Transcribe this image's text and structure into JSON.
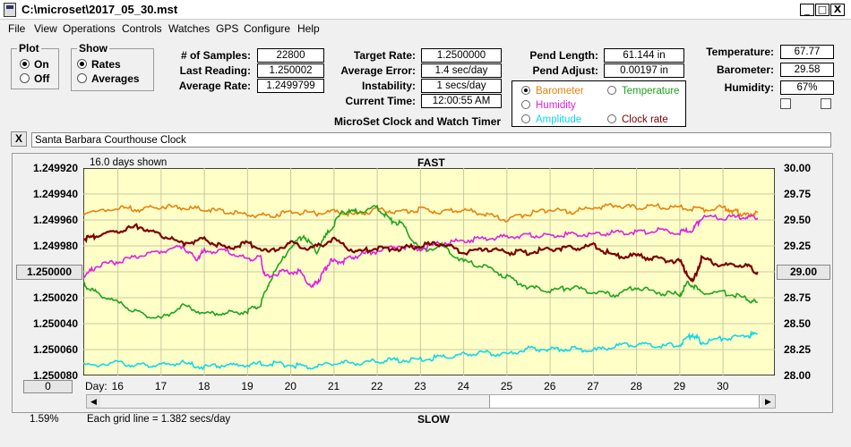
{
  "window": {
    "title": "C:\\microset\\2017_05_30.mst",
    "minimize": "_",
    "maximize": "□",
    "close": "X"
  },
  "menu": [
    "File",
    "View",
    "Operations",
    "Controls",
    "Watches",
    "GPS",
    "Configure",
    "Help"
  ],
  "plot_group": {
    "legend": "Plot",
    "options": [
      "On",
      "Off"
    ],
    "selected": 0
  },
  "show_group": {
    "legend": "Show",
    "options": [
      "Rates",
      "Averages"
    ],
    "selected": 0
  },
  "stats": {
    "samples_label": "# of Samples:",
    "samples": "22800",
    "last_label": "Last Reading:",
    "last": "1.250002",
    "avg_label": "Average Rate:",
    "avg": "1.2499799",
    "target_label": "Target Rate:",
    "target": "1.2500000",
    "err_label": "Average Error:",
    "err": "1.4 sec/day",
    "instab_label": "Instability:",
    "instab": "1 secs/day",
    "time_label": "Current Time:",
    "time": "12:00:55 AM",
    "pendlen_label": "Pend Length:",
    "pendlen": "61.144 in",
    "pendadj_label": "Pend Adjust:",
    "pendadj": "0.00197 in",
    "temp_label": "Temperature:",
    "temp": "67.77",
    "baro_label": "Barometer:",
    "baro": "29.58",
    "hum_label": "Humidity:",
    "hum": "67%"
  },
  "legend": [
    {
      "label": "Barometer",
      "color": "#e8820c",
      "selected": true
    },
    {
      "label": "Temperature",
      "color": "#1ea51e",
      "selected": false
    },
    {
      "label": "Humidity",
      "color": "#e020e0",
      "selected": false
    },
    {
      "label": "Amplitude",
      "color": "#10d8e8",
      "selected": false
    },
    {
      "label": "Clock rate",
      "color": "#7a0000",
      "selected": false
    }
  ],
  "clock_title": "MicroSet Clock and Watch Timer",
  "clock_name": "Santa Barbara Courthouse Clock",
  "x_button": "X",
  "chart_data": {
    "type": "line",
    "days_shown": "16.0 days shown",
    "top_label": "FAST",
    "bottom_label": "SLOW",
    "grid_note": "Each grid line = 1.382 secs/day",
    "percent": "1.59%",
    "day_label": "Day:",
    "left_button": "1.250000",
    "right_button": "29.00",
    "zero_button": "0",
    "y_left_ticks": [
      "1.249920",
      "1.249940",
      "1.249960",
      "1.249980",
      "1.250000",
      "1.250020",
      "1.250040",
      "1.250060",
      "1.250080"
    ],
    "y_left_range": [
      1.24992,
      1.25008
    ],
    "y_right_ticks": [
      "30.00",
      "29.75",
      "29.50",
      "29.25",
      "29.00",
      "28.75",
      "28.50",
      "28.25",
      "28.00"
    ],
    "y_right_range": [
      28.0,
      30.0
    ],
    "x_ticks": [
      16,
      17,
      18,
      19,
      20,
      21,
      22,
      23,
      24,
      25,
      26,
      27,
      28,
      29,
      30
    ],
    "x_range": [
      15.2,
      31.2
    ],
    "series": [
      {
        "name": "Barometer",
        "color": "#e8820c",
        "axis": "right",
        "x": [
          15.2,
          16,
          16.5,
          17,
          17.5,
          18,
          18.5,
          19,
          19.5,
          20,
          20.5,
          21,
          21.5,
          22,
          22.5,
          23,
          23.5,
          24,
          24.5,
          25,
          25.5,
          26,
          26.5,
          27,
          27.5,
          28,
          28.5,
          29,
          29.5,
          30,
          30.3,
          30.5,
          30.8
        ],
        "y": [
          29.55,
          29.62,
          29.6,
          29.63,
          29.62,
          29.6,
          29.58,
          29.55,
          29.54,
          29.58,
          29.56,
          29.58,
          29.55,
          29.6,
          29.58,
          29.6,
          29.58,
          29.6,
          29.55,
          29.5,
          29.56,
          29.6,
          29.58,
          29.62,
          29.64,
          29.62,
          29.63,
          29.62,
          29.6,
          29.62,
          29.58,
          29.55,
          29.57
        ]
      },
      {
        "name": "Temperature",
        "color": "#1ea51e",
        "axis": "right",
        "x": [
          15.2,
          15.5,
          16,
          16.5,
          17,
          17.5,
          18,
          18.5,
          19,
          19.3,
          19.5,
          20,
          20.3,
          20.6,
          20.9,
          21.2,
          21.5,
          22,
          22.3,
          22.6,
          23,
          23.5,
          24,
          24.5,
          25,
          25.5,
          26,
          26.5,
          27,
          27.5,
          28,
          28.5,
          29,
          29.2,
          29.5,
          30,
          30.5,
          30.8
        ],
        "y": [
          28.88,
          28.8,
          28.7,
          28.6,
          28.55,
          28.68,
          28.6,
          28.6,
          28.62,
          28.68,
          28.9,
          29.25,
          29.35,
          29.2,
          29.4,
          29.58,
          29.58,
          29.62,
          29.5,
          29.45,
          29.2,
          29.25,
          29.1,
          29.05,
          28.95,
          28.85,
          28.82,
          28.85,
          28.8,
          28.78,
          28.85,
          28.8,
          28.78,
          28.9,
          28.8,
          28.8,
          28.75,
          28.7
        ]
      },
      {
        "name": "Humidity",
        "color": "#e020e0",
        "axis": "right",
        "x": [
          15.2,
          15.5,
          16,
          16.5,
          17,
          17.5,
          17.8,
          18,
          18.5,
          19,
          19.3,
          19.4,
          19.8,
          20.2,
          20.5,
          20.7,
          20.9,
          21.2,
          21.5,
          22,
          22.5,
          23,
          23.5,
          24,
          24.5,
          25,
          25.5,
          26,
          26.5,
          27,
          27.5,
          28,
          28.5,
          29,
          29.3,
          29.5,
          30,
          30.5,
          30.8
        ],
        "y": [
          28.95,
          29.05,
          29.1,
          29.15,
          29.2,
          29.25,
          29.12,
          29.2,
          29.2,
          29.12,
          29.15,
          28.95,
          29.0,
          29.0,
          28.85,
          28.95,
          29.1,
          29.1,
          29.15,
          29.2,
          29.25,
          29.22,
          29.28,
          29.3,
          29.32,
          29.34,
          29.35,
          29.35,
          29.36,
          29.36,
          29.38,
          29.38,
          29.4,
          29.38,
          29.4,
          29.52,
          29.52,
          29.53,
          29.52
        ]
      },
      {
        "name": "Amplitude",
        "color": "#10d8e8",
        "axis": "right",
        "x": [
          15.2,
          16,
          16.5,
          17,
          17.5,
          18,
          18.5,
          19,
          19.5,
          20,
          20.5,
          21,
          21.5,
          22,
          22.5,
          23,
          23.5,
          24,
          24.5,
          25,
          25.5,
          26,
          26.5,
          27,
          27.5,
          28,
          28.5,
          29,
          29.3,
          29.5,
          30,
          30.5,
          30.8
        ],
        "y": [
          28.1,
          28.12,
          28.1,
          28.1,
          28.12,
          28.08,
          28.1,
          28.1,
          28.12,
          28.1,
          28.08,
          28.12,
          28.12,
          28.14,
          28.15,
          28.15,
          28.18,
          28.2,
          28.22,
          28.2,
          28.26,
          28.25,
          28.26,
          28.24,
          28.28,
          28.3,
          28.28,
          28.3,
          28.4,
          28.32,
          28.36,
          28.38,
          28.4
        ]
      },
      {
        "name": "Clock rate",
        "color": "#7a0000",
        "axis": "left",
        "x": [
          15.2,
          15.5,
          16,
          16.5,
          17,
          17.5,
          18,
          18.5,
          19,
          19.5,
          20,
          20.5,
          21,
          21.5,
          22,
          22.5,
          23,
          23.5,
          24,
          24.5,
          25,
          25.5,
          26,
          26.5,
          27,
          27.5,
          28,
          28.5,
          29,
          29.3,
          29.5,
          30,
          30.5,
          30.8
        ],
        "y": [
          1.249975,
          1.249972,
          1.249968,
          1.249965,
          1.249972,
          1.249978,
          1.249975,
          1.249982,
          1.249978,
          1.249985,
          1.249978,
          1.249982,
          1.249975,
          1.249985,
          1.249982,
          1.249982,
          1.24998,
          1.249978,
          1.249985,
          1.249982,
          1.249985,
          1.249985,
          1.249982,
          1.249982,
          1.24998,
          1.249988,
          1.249988,
          1.24999,
          1.249992,
          1.250008,
          1.24999,
          1.249995,
          1.249995,
          1.25
        ]
      }
    ]
  }
}
